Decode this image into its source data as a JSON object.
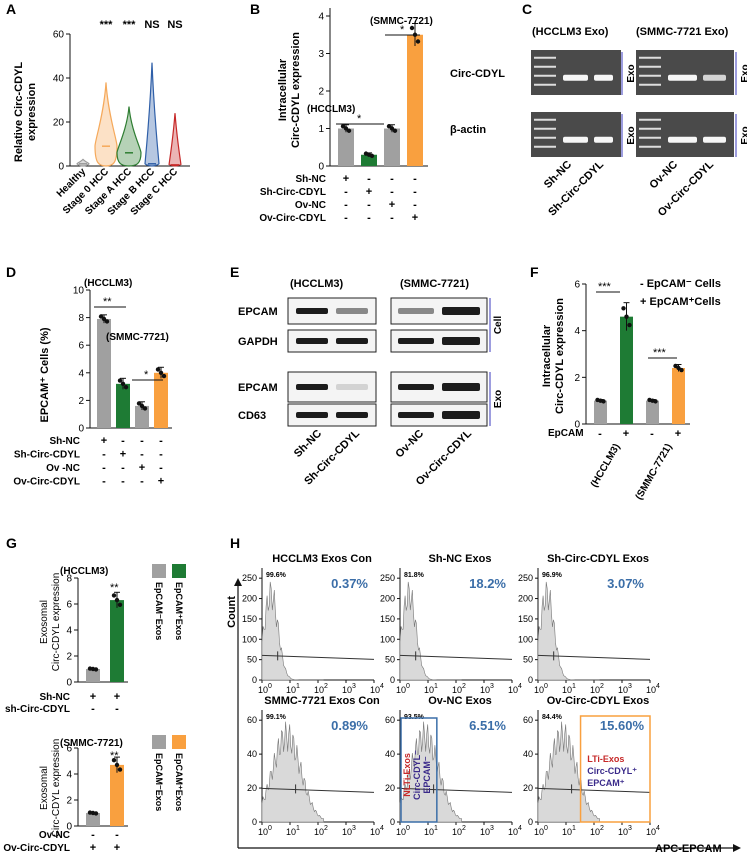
{
  "colors": {
    "healthy": "#999999",
    "stage0": "#f5a95b",
    "stageA": "#2e7d32",
    "stageB": "#2f5fa8",
    "stageC": "#c62828",
    "gray": "#a0a0a0",
    "green": "#1e7b34",
    "orange": "#f9a03f",
    "blue": "#3b6ea8",
    "histfill": "#d9d9d9"
  },
  "panels": {
    "A": "A",
    "B": "B",
    "C": "C",
    "D": "D",
    "E": "E",
    "F": "F",
    "G": "G",
    "H": "H"
  },
  "panelA": {
    "ylabel_line1": "Relative Circ-CDYL",
    "ylabel_line2": "expression",
    "yticks": [
      "0",
      "20",
      "40",
      "60"
    ],
    "significance": [
      "***",
      "***",
      "NS",
      "NS"
    ],
    "chart_data": {
      "type": "violin",
      "categories": [
        "Healthy",
        "Stage 0 HCC",
        "Stage A HCC",
        "Stage B HCC",
        "Stage C HCC"
      ],
      "approx_range": [
        [
          0,
          3
        ],
        [
          0,
          38
        ],
        [
          0,
          27
        ],
        [
          0,
          47
        ],
        [
          0,
          24
        ]
      ],
      "approx_median": [
        1,
        9,
        6,
        1,
        0.5
      ],
      "ylim": [
        0,
        60
      ],
      "ylabel": "Relative Circ-CDYL expression"
    }
  },
  "panelB": {
    "ylabel_line1": "Intracellular",
    "ylabel_line2": "Circ-CDYL expression",
    "yticks": [
      "0",
      "1",
      "2",
      "3",
      "4"
    ],
    "group1": "(HCCLM3)",
    "group2": "(SMMC-7721)",
    "star1": "*",
    "star2": "*",
    "rows": [
      {
        "label": "Sh-NC",
        "signs": [
          "+",
          "-",
          "-",
          "-"
        ]
      },
      {
        "label": "Sh-Circ-CDYL",
        "signs": [
          "-",
          "+",
          "-",
          "-"
        ]
      },
      {
        "label": "Ov-NC",
        "signs": [
          "-",
          "-",
          "+",
          "-"
        ]
      },
      {
        "label": "Ov-Circ-CDYL",
        "signs": [
          "-",
          "-",
          "-",
          "+"
        ]
      }
    ],
    "chart_data": {
      "type": "bar",
      "categories": [
        "Sh-NC",
        "Sh-Circ-CDYL",
        "Ov-NC",
        "Ov-Circ-CDYL"
      ],
      "values": [
        1.0,
        0.3,
        1.0,
        3.5
      ],
      "errors": [
        0.1,
        0.05,
        0.1,
        0.3
      ],
      "ylim": [
        0,
        4
      ],
      "ylabel": "Intracellular Circ-CDYL expression"
    }
  },
  "panelC": {
    "group1": "(HCCLM3 Exo)",
    "group2": "(SMMC-7721 Exo)",
    "row1": "Circ-CDYL",
    "row2": "β-actin",
    "exo": "Exo",
    "lanes1": [
      "Sh-NC",
      "Sh-Circ-CDYL"
    ],
    "lanes2": [
      "Ov-NC",
      "Ov-Circ-CDYL"
    ]
  },
  "panelD": {
    "ylabel": "EPCAM⁺ Cells (%)",
    "yticks": [
      "0",
      "2",
      "4",
      "6",
      "8",
      "10"
    ],
    "group1": "(HCCLM3)",
    "group2": "(SMMC-7721)",
    "star1": "**",
    "star2": "*",
    "rows": [
      {
        "label": "Sh-NC",
        "signs": [
          "+",
          "-",
          "-",
          "-"
        ]
      },
      {
        "label": "Sh-Circ-CDYL",
        "signs": [
          "-",
          "+",
          "-",
          "-"
        ]
      },
      {
        "label": "Ov -NC",
        "signs": [
          "-",
          "-",
          "+",
          "-"
        ]
      },
      {
        "label": "Ov-Circ-CDYL",
        "signs": [
          "-",
          "-",
          "-",
          "+"
        ]
      }
    ],
    "chart_data": {
      "type": "bar",
      "categories": [
        "Sh-NC",
        "Sh-Circ-CDYL",
        "Ov-NC",
        "Ov-Circ-CDYL"
      ],
      "values": [
        7.9,
        3.2,
        1.6,
        4.0
      ],
      "errors": [
        0.3,
        0.4,
        0.3,
        0.4
      ],
      "ylim": [
        0,
        10
      ],
      "ylabel": "EPCAM+ Cells (%)"
    }
  },
  "panelE": {
    "group1": "(HCCLM3)",
    "group2": "(SMMC-7721)",
    "rows": [
      "EPCAM",
      "GAPDH",
      "EPCAM",
      "CD63"
    ],
    "cell": "Cell",
    "exo": "Exo",
    "lanes1": [
      "Sh-NC",
      "Sh-Circ-CDYL"
    ],
    "lanes2": [
      "Ov-NC",
      "Ov-Circ-CDYL"
    ]
  },
  "panelF": {
    "ylabel_line1": "Intracellular",
    "ylabel_line2": "Circ-CDYL expression",
    "yticks": [
      "0",
      "2",
      "4",
      "6"
    ],
    "legend_minus": "-  EpCAM⁻ Cells",
    "legend_plus": "+  EpCAM⁺Cells",
    "star1": "***",
    "star2": "***",
    "xrow": "EpCAM",
    "signs": [
      "-",
      "+",
      "-",
      "+"
    ],
    "groups": [
      "(HCCLM3)",
      "(SMMC-7721)"
    ],
    "chart_data": {
      "type": "bar",
      "categories": [
        "HCCLM3 EpCAM-",
        "HCCLM3 EpCAM+",
        "SMMC-7721 EpCAM-",
        "SMMC-7721 EpCAM+"
      ],
      "values": [
        1.0,
        4.6,
        1.0,
        2.4
      ],
      "errors": [
        0.05,
        0.6,
        0.05,
        0.15
      ],
      "ylim": [
        0,
        6
      ],
      "ylabel": "Intracellular Circ-CDYL expression"
    }
  },
  "panelG": {
    "ylabel_line1": "Exosomal",
    "ylabel_line2": "Circ-CDYL expression",
    "top": {
      "group": "(HCCLM3)",
      "yticks": [
        "0",
        "2",
        "4",
        "6",
        "8"
      ],
      "star": "**",
      "rows": [
        {
          "label": "Sh-NC",
          "signs": [
            "+",
            "+"
          ]
        },
        {
          "label": "sh-Circ-CDYL",
          "signs": [
            "-",
            "-"
          ]
        }
      ],
      "legend": [
        "EpCAM⁻Exos",
        "EpCAM⁺Exos"
      ]
    },
    "bottom": {
      "group": "(SMMC-7721)",
      "yticks": [
        "0",
        "2",
        "4",
        "6"
      ],
      "star": "**",
      "rows": [
        {
          "label": "Ov-NC",
          "signs": [
            "-",
            "-"
          ]
        },
        {
          "label": "Ov-Circ-CDYL",
          "signs": [
            "+",
            "+"
          ]
        }
      ],
      "legend": [
        "EpCAM⁻Exos",
        "EpCAM⁺Exos"
      ]
    },
    "chart_data": [
      {
        "type": "bar",
        "title": "(HCCLM3)",
        "categories": [
          "EpCAM- Exos",
          "EpCAM+ Exos"
        ],
        "values": [
          1.0,
          6.3
        ],
        "errors": [
          0.05,
          0.6
        ],
        "ylim": [
          0,
          8
        ]
      },
      {
        "type": "bar",
        "title": "(SMMC-7721)",
        "categories": [
          "EpCAM- Exos",
          "EpCAM+ Exos"
        ],
        "values": [
          1.0,
          4.7
        ],
        "errors": [
          0.05,
          0.6
        ],
        "ylim": [
          0,
          6
        ]
      }
    ]
  },
  "panelH": {
    "ylabel": "Count",
    "xlabel": "APC-EPCAM",
    "xticks": [
      "10",
      "10",
      "10",
      "10",
      "10"
    ],
    "xexp": [
      "0",
      "1",
      "2",
      "3",
      "4"
    ],
    "plots": [
      {
        "title": "HCCLM3 Exos Con",
        "pct": "0.37%",
        "gate": "99.6%",
        "yticks": [
          "0",
          "50",
          "100",
          "150",
          "200",
          "250"
        ]
      },
      {
        "title": "Sh-NC Exos",
        "pct": "18.2%",
        "gate": "81.8%",
        "yticks": [
          "0",
          "50",
          "100",
          "150",
          "200",
          "250"
        ]
      },
      {
        "title": "Sh-Circ-CDYL Exos",
        "pct": "3.07%",
        "gate": "96.9%",
        "yticks": [
          "0",
          "50",
          "100",
          "150",
          "200",
          "250"
        ]
      },
      {
        "title": "SMMC-7721 Exos Con",
        "pct": "0.89%",
        "gate": "99.1%",
        "yticks": [
          "0",
          "20",
          "40",
          "60"
        ]
      },
      {
        "title": "Ov-NC Exos",
        "pct": "6.51%",
        "gate": "93.5%",
        "yticks": [
          "0",
          "20",
          "40",
          "60"
        ]
      },
      {
        "title": "Ov-Circ-CDYL Exos",
        "pct": "15.60%",
        "gate": "84.4%",
        "yticks": [
          "0",
          "20",
          "40",
          "60"
        ]
      }
    ],
    "nlti": "NLTi-Exos",
    "lti": "LTi-Exos",
    "circ_minus": "Circ-CDYL⁻",
    "epcam_minus": "EPCAM⁻",
    "circ_plus": "Circ-CDYL⁺",
    "epcam_plus": "EPCAM⁺"
  }
}
